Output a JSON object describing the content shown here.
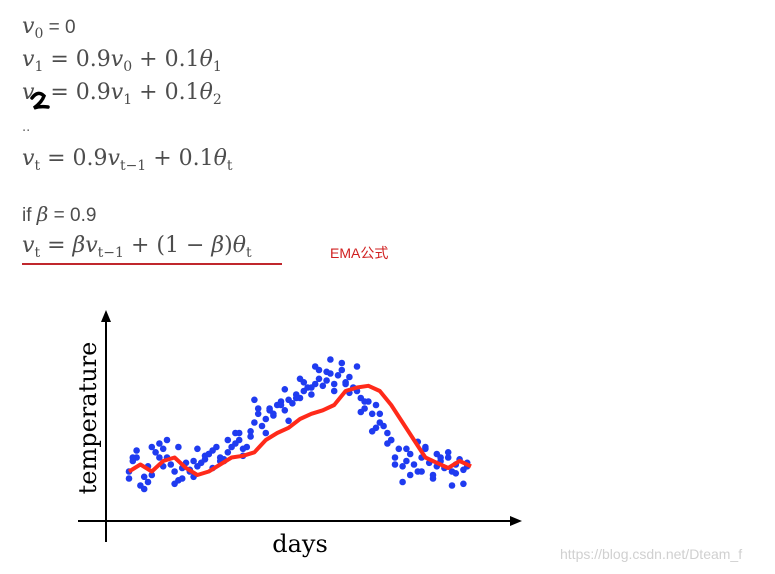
{
  "formulas": {
    "v0": {
      "lhs": "v",
      "lhs_sub": "0",
      "rhs": "= 0"
    },
    "v1": {
      "lhs": "v",
      "lhs_sub": "1",
      "c1": "= 0.9",
      "v": "v",
      "v_sub": "0",
      "c2": "+ 0.1",
      "theta": "θ",
      "theta_sub": "1"
    },
    "v2": {
      "lhs": "v",
      "lhs_sub": "2",
      "c1": "= 0.9",
      "v": "v",
      "v_sub": "1",
      "c2": "+ 0.1",
      "theta": "θ",
      "theta_sub": "2"
    },
    "ellipsis": "..",
    "vt": {
      "lhs": "v",
      "lhs_sub": "t",
      "c1": "= 0.9",
      "v": "v",
      "v_sub": "t−1",
      "c2": "+ 0.1",
      "theta": "θ",
      "theta_sub": "t"
    },
    "if_line": {
      "prefix": "if",
      "beta": "β",
      "suffix": "= 0.9"
    },
    "ema": {
      "lhs": "v",
      "lhs_sub": "t",
      "eq": "=",
      "beta": "β",
      "v": "v",
      "v_sub": "t−1",
      "mid": "+ (1 −",
      "beta2": "β",
      "close": ")",
      "theta": "θ",
      "theta_sub": "t"
    }
  },
  "ema_label": "EMA公式",
  "watermark": "https://blog.csdn.net/Dteam_f",
  "colors": {
    "points": "#1f3bf0",
    "ema_line": "#ff2a1a",
    "underline": "#c0272d",
    "label": "#d02020"
  },
  "chart_data": {
    "type": "scatter",
    "xlabel": "days",
    "ylabel": "temperature",
    "xlim": [
      0,
      100
    ],
    "ylim": [
      0,
      100
    ],
    "grid": false,
    "series": [
      {
        "x": [
          5,
          6,
          7,
          8,
          9,
          10,
          11,
          12,
          13,
          14,
          15,
          16,
          17,
          18,
          19,
          20,
          21,
          22,
          23,
          24,
          25,
          26,
          27,
          28,
          29,
          30,
          31,
          32,
          33,
          34,
          35,
          36,
          37,
          38,
          39,
          40,
          41,
          42,
          43,
          44,
          45,
          46,
          47,
          48,
          49,
          50,
          51,
          52,
          53,
          54,
          55,
          56,
          57,
          58,
          59,
          60,
          61,
          62,
          63,
          64,
          65,
          66,
          67,
          68,
          69,
          70,
          71,
          72,
          73,
          74,
          75,
          76,
          77,
          78,
          79,
          80,
          81,
          82,
          83,
          84,
          85,
          86,
          87,
          88,
          89,
          90,
          91,
          92,
          93,
          94,
          5,
          7,
          9,
          11,
          13,
          15,
          17,
          19,
          21,
          23,
          25,
          27,
          29,
          31,
          33,
          35,
          37,
          39,
          41,
          43,
          45,
          47,
          49,
          51,
          53,
          55,
          57,
          59,
          61,
          63,
          65,
          67,
          69,
          71,
          73,
          75,
          77,
          79,
          81,
          83,
          85,
          87,
          89,
          91,
          93,
          6,
          10,
          14,
          18,
          22,
          26,
          30,
          34,
          38,
          42,
          46,
          50,
          54,
          58,
          62,
          66,
          70,
          74,
          78,
          82,
          86,
          90,
          94
        ],
        "y": [
          22,
          28,
          30,
          14,
          19,
          25,
          20,
          33,
          38,
          35,
          30,
          26,
          22,
          17,
          24,
          27,
          23,
          19,
          25,
          27,
          29,
          32,
          34,
          36,
          30,
          28,
          33,
          36,
          38,
          40,
          35,
          36,
          42,
          50,
          55,
          48,
          52,
          58,
          54,
          60,
          62,
          57,
          63,
          61,
          66,
          64,
          68,
          70,
          66,
          72,
          75,
          71,
          74,
          78,
          72,
          77,
          80,
          73,
          76,
          70,
          68,
          64,
          58,
          62,
          55,
          60,
          50,
          48,
          44,
          40,
          30,
          35,
          25,
          28,
          32,
          26,
          22,
          30,
          35,
          27,
          20,
          25,
          28,
          24,
          30,
          22,
          26,
          29,
          23,
          25,
          18,
          34,
          12,
          36,
          30,
          40,
          15,
          18,
          22,
          35,
          31,
          24,
          28,
          40,
          44,
          31,
          45,
          58,
          44,
          55,
          60,
          51,
          64,
          73,
          70,
          80,
          79,
          68,
          84,
          67,
          82,
          62,
          45,
          55,
          38,
          26,
          16,
          20,
          39,
          36,
          18,
          30,
          33,
          21,
          15,
          30,
          16,
          25,
          36,
          28,
          32,
          29,
          44,
          63,
          57,
          69,
          75,
          82,
          86,
          72,
          56,
          47,
          40,
          35,
          22,
          32,
          14,
          27
        ]
      }
    ],
    "line": {
      "name": "",
      "x": [
        5,
        8,
        11,
        14,
        17,
        20,
        23,
        26,
        29,
        32,
        35,
        38,
        41,
        44,
        47,
        50,
        53,
        56,
        59,
        62,
        65,
        68,
        71,
        74,
        77,
        80,
        83,
        86,
        89,
        92,
        95
      ],
      "y": [
        22,
        26,
        22,
        28,
        30,
        24,
        20,
        22,
        26,
        30,
        31,
        33,
        40,
        44,
        47,
        52,
        55,
        57,
        60,
        68,
        70,
        71,
        68,
        60,
        50,
        40,
        30,
        27,
        24,
        28,
        25
      ]
    }
  }
}
